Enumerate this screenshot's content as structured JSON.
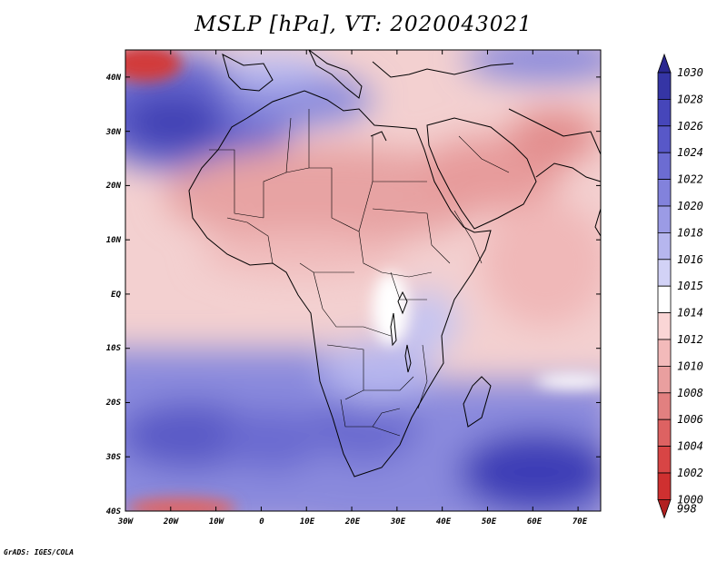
{
  "title": "MSLP [hPa], VT: 2020043021",
  "footer": "GrADS: IGES/COLA",
  "map": {
    "variable": "MSLP",
    "units": "hPa",
    "valid_time": "2020043021",
    "lon_range": [
      -30,
      75
    ],
    "lat_range": [
      -40,
      45
    ],
    "lon_ticks": [
      "30W",
      "20W",
      "10W",
      "0",
      "10E",
      "20E",
      "30E",
      "40E",
      "50E",
      "60E",
      "70E"
    ],
    "lat_ticks": [
      "40N",
      "30N",
      "20N",
      "10N",
      "EQ",
      "10S",
      "20S",
      "30S",
      "40S"
    ]
  },
  "colorbar": {
    "levels": [
      "1030",
      "1028",
      "1026",
      "1024",
      "1022",
      "1020",
      "1018",
      "1016",
      "1015",
      "1014",
      "1012",
      "1010",
      "1008",
      "1006",
      "1004",
      "1002",
      "1000",
      "998"
    ],
    "colors": [
      "#2a2790",
      "#3535a5",
      "#4646ba",
      "#5858c8",
      "#6c6cd2",
      "#8282dc",
      "#9b9be5",
      "#b6b6ee",
      "#d2d2f6",
      "#ffffff",
      "#fad6d6",
      "#f3baba",
      "#e99f9f",
      "#e28080",
      "#dd6262",
      "#d84545",
      "#cf3030",
      "#b22020"
    ]
  }
}
